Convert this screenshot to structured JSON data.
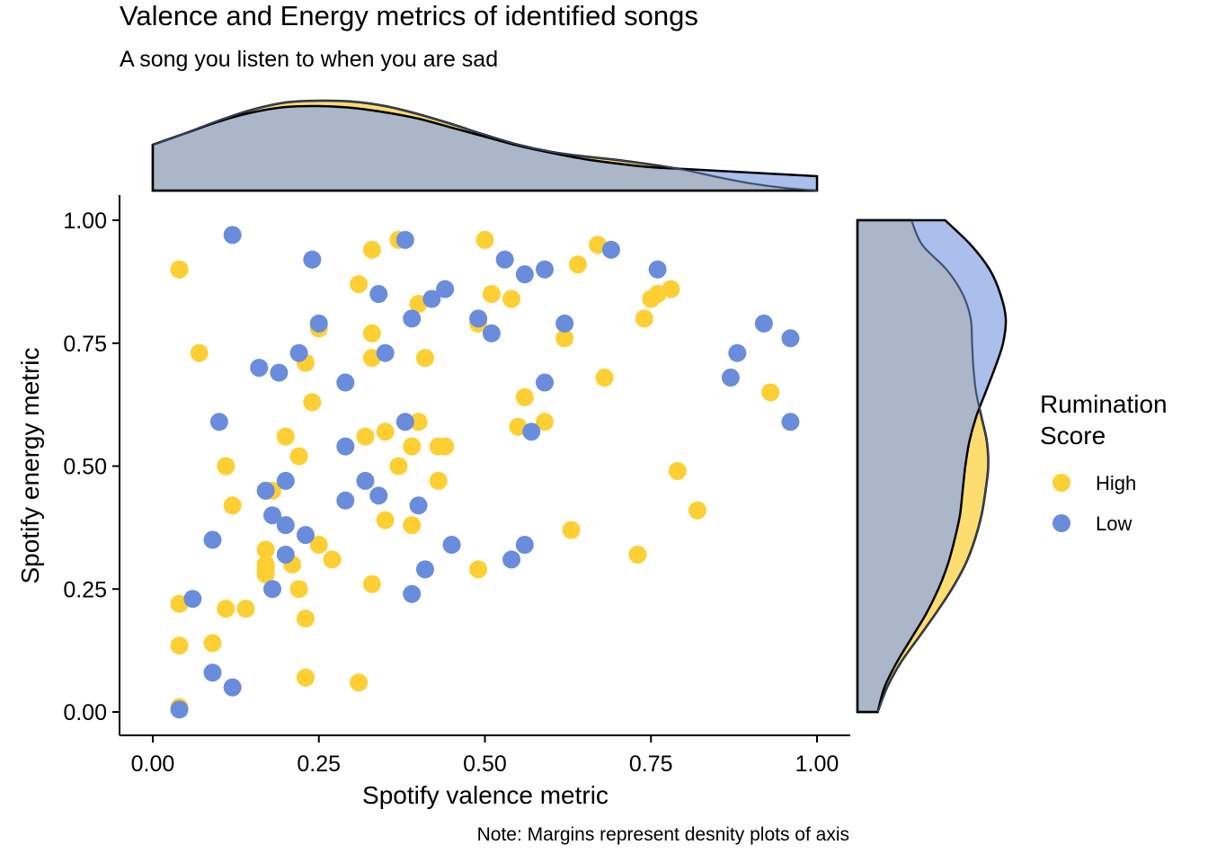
{
  "chart_data": {
    "type": "scatter",
    "title": "Valence and Energy metrics of identified songs",
    "subtitle": "A song you listen to when you are sad",
    "xlabel": "Spotify valence metric",
    "ylabel": "Spotify energy metric",
    "caption": "Note: Margins represent desnity plots of axis",
    "xlim": [
      0,
      1
    ],
    "ylim": [
      0,
      1
    ],
    "xticks": [
      "0.00",
      "0.25",
      "0.50",
      "0.75",
      "1.00"
    ],
    "yticks": [
      "0.00",
      "0.25",
      "0.50",
      "0.75",
      "1.00"
    ],
    "grid": false,
    "legend": {
      "title": "Rumination Score",
      "title_lines": [
        "Rumination",
        "Score"
      ],
      "position": "right",
      "entries": [
        "High",
        "Low"
      ]
    },
    "colors": {
      "High": "#FDCF33",
      "Low": "#6A8CDD",
      "High_density": "#FDDC70",
      "Low_density": "#8FA9E6",
      "overlap_density": "#8C9FB7"
    },
    "marginal_x": {
      "x": [
        0,
        0.05,
        0.1,
        0.15,
        0.2,
        0.25,
        0.3,
        0.35,
        0.4,
        0.45,
        0.5,
        0.55,
        0.6,
        0.65,
        0.7,
        0.75,
        0.8,
        0.85,
        0.9,
        0.95,
        1.0
      ],
      "High": [
        0.51,
        0.64,
        0.78,
        0.9,
        0.98,
        1.0,
        0.99,
        0.94,
        0.85,
        0.74,
        0.62,
        0.51,
        0.43,
        0.38,
        0.34,
        0.29,
        0.23,
        0.15,
        0.08,
        0.03,
        0.0
      ],
      "Low": [
        0.51,
        0.64,
        0.77,
        0.87,
        0.93,
        0.94,
        0.92,
        0.87,
        0.8,
        0.7,
        0.6,
        0.5,
        0.42,
        0.35,
        0.3,
        0.26,
        0.24,
        0.22,
        0.2,
        0.18,
        0.16
      ]
    },
    "marginal_y": {
      "y": [
        0,
        0.05,
        0.1,
        0.15,
        0.2,
        0.25,
        0.3,
        0.35,
        0.4,
        0.45,
        0.5,
        0.55,
        0.6,
        0.65,
        0.7,
        0.75,
        0.8,
        0.85,
        0.9,
        0.95,
        1.0
      ],
      "High": [
        0.15,
        0.22,
        0.32,
        0.45,
        0.58,
        0.7,
        0.8,
        0.87,
        0.92,
        0.95,
        0.97,
        0.96,
        0.92,
        0.88,
        0.86,
        0.85,
        0.84,
        0.78,
        0.66,
        0.48,
        0.4
      ],
      "Low": [
        0.15,
        0.2,
        0.29,
        0.4,
        0.51,
        0.6,
        0.67,
        0.72,
        0.76,
        0.78,
        0.8,
        0.83,
        0.88,
        0.95,
        1.02,
        1.08,
        1.1,
        1.06,
        0.98,
        0.84,
        0.65
      ]
    },
    "series": [
      {
        "name": "High",
        "points": [
          [
            0.04,
            0.9
          ],
          [
            0.04,
            0.9
          ],
          [
            0.07,
            0.73
          ],
          [
            0.04,
            0.22
          ],
          [
            0.04,
            0.135
          ],
          [
            0.04,
            0.01
          ],
          [
            0.09,
            0.14
          ],
          [
            0.11,
            0.21
          ],
          [
            0.14,
            0.21
          ],
          [
            0.11,
            0.5
          ],
          [
            0.12,
            0.42
          ],
          [
            0.17,
            0.33
          ],
          [
            0.17,
            0.3
          ],
          [
            0.17,
            0.29
          ],
          [
            0.17,
            0.28
          ],
          [
            0.18,
            0.45
          ],
          [
            0.2,
            0.56
          ],
          [
            0.21,
            0.3
          ],
          [
            0.22,
            0.25
          ],
          [
            0.22,
            0.52
          ],
          [
            0.23,
            0.71
          ],
          [
            0.23,
            0.19
          ],
          [
            0.23,
            0.07
          ],
          [
            0.24,
            0.63
          ],
          [
            0.25,
            0.34
          ],
          [
            0.25,
            0.78
          ],
          [
            0.27,
            0.31
          ],
          [
            0.31,
            0.87
          ],
          [
            0.31,
            0.06
          ],
          [
            0.32,
            0.56
          ],
          [
            0.33,
            0.94
          ],
          [
            0.33,
            0.77
          ],
          [
            0.33,
            0.72
          ],
          [
            0.33,
            0.26
          ],
          [
            0.35,
            0.57
          ],
          [
            0.35,
            0.39
          ],
          [
            0.37,
            0.96
          ],
          [
            0.37,
            0.5
          ],
          [
            0.39,
            0.38
          ],
          [
            0.39,
            0.54
          ],
          [
            0.4,
            0.59
          ],
          [
            0.4,
            0.83
          ],
          [
            0.41,
            0.72
          ],
          [
            0.43,
            0.54
          ],
          [
            0.43,
            0.47
          ],
          [
            0.44,
            0.54
          ],
          [
            0.49,
            0.79
          ],
          [
            0.49,
            0.29
          ],
          [
            0.5,
            0.96
          ],
          [
            0.51,
            0.85
          ],
          [
            0.54,
            0.84
          ],
          [
            0.55,
            0.58
          ],
          [
            0.56,
            0.64
          ],
          [
            0.59,
            0.59
          ],
          [
            0.62,
            0.76
          ],
          [
            0.63,
            0.37
          ],
          [
            0.64,
            0.91
          ],
          [
            0.67,
            0.95
          ],
          [
            0.68,
            0.68
          ],
          [
            0.73,
            0.32
          ],
          [
            0.74,
            0.8
          ],
          [
            0.75,
            0.84
          ],
          [
            0.76,
            0.85
          ],
          [
            0.78,
            0.86
          ],
          [
            0.79,
            0.49
          ],
          [
            0.82,
            0.41
          ],
          [
            0.93,
            0.65
          ]
        ]
      },
      {
        "name": "Low",
        "points": [
          [
            0.04,
            0.005
          ],
          [
            0.06,
            0.23
          ],
          [
            0.09,
            0.35
          ],
          [
            0.09,
            0.08
          ],
          [
            0.1,
            0.59
          ],
          [
            0.12,
            0.97
          ],
          [
            0.12,
            0.05
          ],
          [
            0.16,
            0.7
          ],
          [
            0.17,
            0.45
          ],
          [
            0.18,
            0.4
          ],
          [
            0.18,
            0.25
          ],
          [
            0.19,
            0.69
          ],
          [
            0.2,
            0.47
          ],
          [
            0.2,
            0.38
          ],
          [
            0.2,
            0.32
          ],
          [
            0.22,
            0.73
          ],
          [
            0.23,
            0.36
          ],
          [
            0.24,
            0.92
          ],
          [
            0.25,
            0.79
          ],
          [
            0.29,
            0.67
          ],
          [
            0.29,
            0.54
          ],
          [
            0.29,
            0.43
          ],
          [
            0.32,
            0.47
          ],
          [
            0.34,
            0.85
          ],
          [
            0.34,
            0.44
          ],
          [
            0.35,
            0.73
          ],
          [
            0.38,
            0.96
          ],
          [
            0.38,
            0.59
          ],
          [
            0.39,
            0.8
          ],
          [
            0.39,
            0.24
          ],
          [
            0.4,
            0.42
          ],
          [
            0.41,
            0.29
          ],
          [
            0.42,
            0.84
          ],
          [
            0.44,
            0.86
          ],
          [
            0.45,
            0.34
          ],
          [
            0.49,
            0.8
          ],
          [
            0.51,
            0.77
          ],
          [
            0.53,
            0.92
          ],
          [
            0.54,
            0.31
          ],
          [
            0.56,
            0.89
          ],
          [
            0.56,
            0.34
          ],
          [
            0.57,
            0.57
          ],
          [
            0.59,
            0.9
          ],
          [
            0.59,
            0.67
          ],
          [
            0.62,
            0.79
          ],
          [
            0.69,
            0.94
          ],
          [
            0.76,
            0.9
          ],
          [
            0.87,
            0.68
          ],
          [
            0.88,
            0.73
          ],
          [
            0.92,
            0.79
          ],
          [
            0.96,
            0.76
          ],
          [
            0.96,
            0.59
          ]
        ]
      }
    ]
  }
}
